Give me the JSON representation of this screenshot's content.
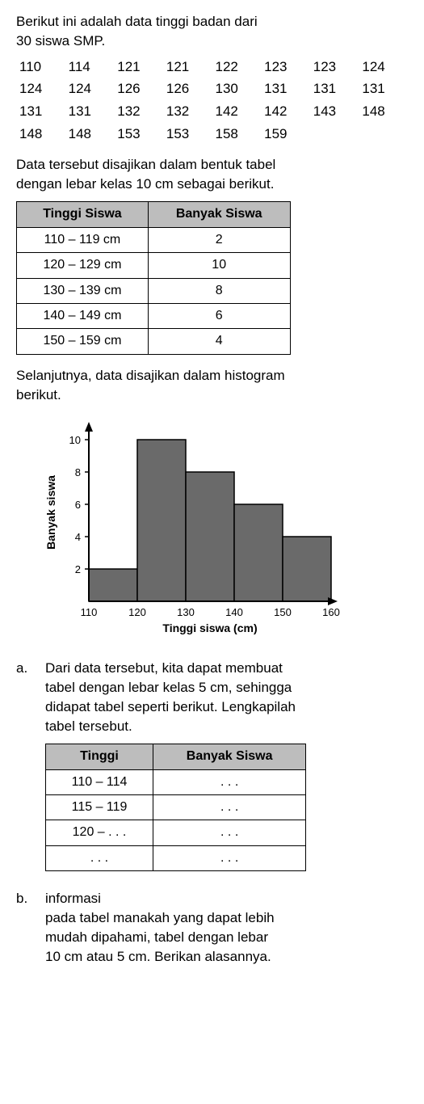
{
  "intro": {
    "line1": "Berikut ini adalah data tinggi badan dari",
    "line2": "30 siswa SMP."
  },
  "raw_data": [
    110,
    114,
    121,
    121,
    122,
    123,
    123,
    124,
    124,
    124,
    126,
    126,
    130,
    131,
    131,
    131,
    131,
    131,
    132,
    132,
    142,
    142,
    143,
    148,
    148,
    148,
    153,
    153,
    158,
    159
  ],
  "table_intro": {
    "line1": "Data tersebut disajikan dalam bentuk tabel",
    "line2": "dengan lebar kelas 10 cm sebagai berikut."
  },
  "freq_table_10": {
    "headers": [
      "Tinggi Siswa",
      "Banyak Siswa"
    ],
    "rows": [
      [
        "110 – 119 cm",
        "2"
      ],
      [
        "120 – 129 cm",
        "10"
      ],
      [
        "130 – 139 cm",
        "8"
      ],
      [
        "140 – 149 cm",
        "6"
      ],
      [
        "150 – 159 cm",
        "4"
      ]
    ]
  },
  "hist_intro": {
    "line1": "Selanjutnya, data disajikan dalam histogram",
    "line2": "berikut."
  },
  "histogram": {
    "type": "bar",
    "y_label": "Banyak siswa",
    "x_label": "Tinggi siswa (cm)",
    "y_ticks": [
      2,
      4,
      6,
      8,
      10
    ],
    "x_ticks": [
      110,
      120,
      130,
      140,
      150,
      160
    ],
    "bars": [
      {
        "x0": 110,
        "x1": 120,
        "value": 2
      },
      {
        "x0": 120,
        "x1": 130,
        "value": 10
      },
      {
        "x0": 130,
        "x1": 140,
        "value": 8
      },
      {
        "x0": 140,
        "x1": 150,
        "value": 6
      },
      {
        "x0": 150,
        "x1": 160,
        "value": 4
      }
    ],
    "bar_color": "#6a6a6a",
    "stroke_color": "#000000",
    "background_color": "#ffffff",
    "y_max": 11,
    "axis_fontsize": 13,
    "label_fontsize": 14,
    "label_fontweight": "bold"
  },
  "question_a": {
    "letter": "a.",
    "text1": "Dari data tersebut, kita dapat membuat",
    "text2": "tabel dengan lebar kelas 5 cm, sehingga",
    "text3": "didapat tabel seperti berikut. Lengkapilah",
    "text4": "tabel tersebut."
  },
  "freq_table_5": {
    "headers": [
      "Tinggi",
      "Banyak Siswa"
    ],
    "rows": [
      [
        "110 – 114",
        ". . ."
      ],
      [
        "115 – 119",
        ". . ."
      ],
      [
        "120 – . . .",
        ". . ."
      ],
      [
        ". . .",
        ". . ."
      ]
    ]
  },
  "question_b": {
    "letter": "b.",
    "text1": "informasi",
    "text2": "pada tabel manakah yang dapat lebih",
    "text3": "mudah dipahami, tabel dengan lebar",
    "text4": "10 cm atau 5 cm. Berikan alasannya."
  }
}
